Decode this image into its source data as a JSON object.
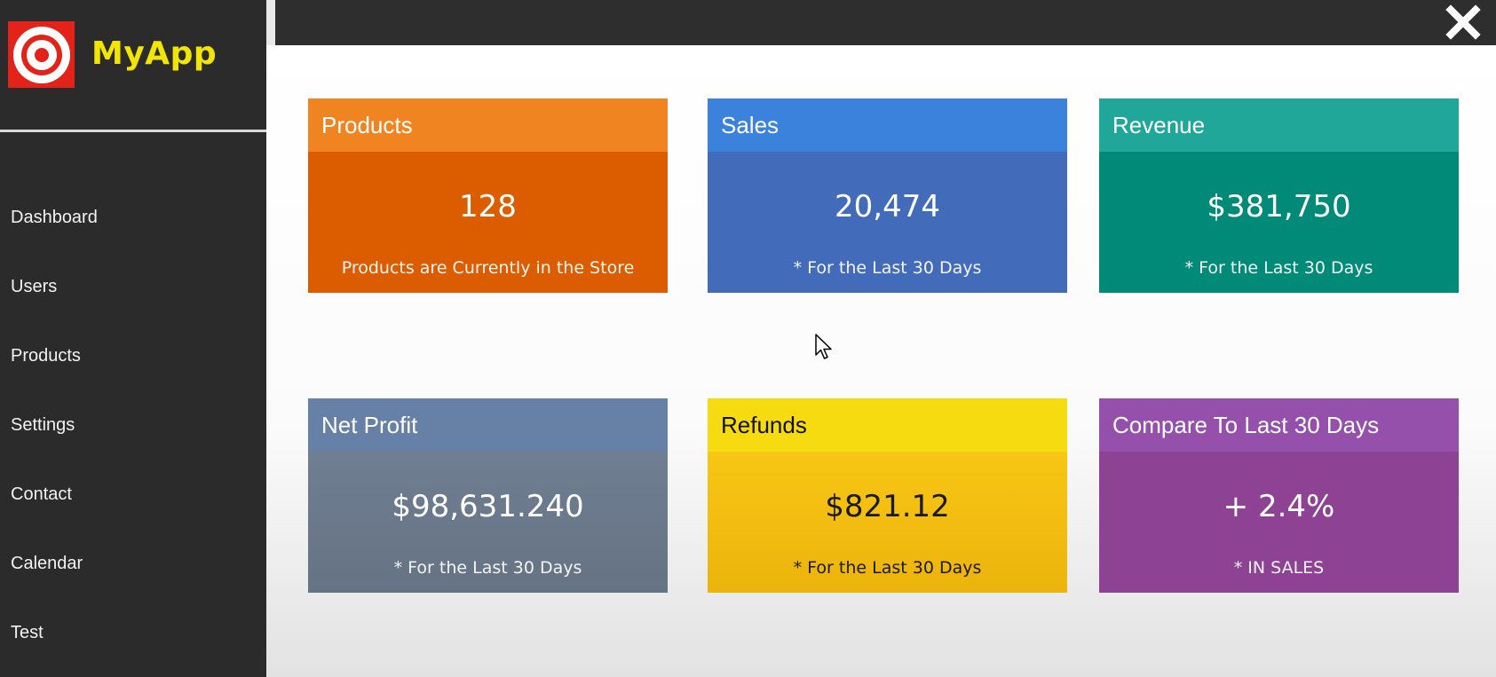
{
  "app": {
    "name": "MyApp",
    "logo_icon": "target-icon"
  },
  "sidebar": {
    "items": [
      {
        "label": "Dashboard"
      },
      {
        "label": "Users"
      },
      {
        "label": "Products"
      },
      {
        "label": "Settings"
      },
      {
        "label": "Contact"
      },
      {
        "label": "Calendar"
      },
      {
        "label": "Test"
      }
    ]
  },
  "topbar": {
    "close_icon": "close-icon"
  },
  "cards": [
    {
      "title": "Products",
      "value": "128",
      "note": "Products are Currently in the Store",
      "color": "#dc5c00"
    },
    {
      "title": "Sales",
      "value": "20,474",
      "note": "* For the Last 30 Days",
      "color": "#426cb9"
    },
    {
      "title": "Revenue",
      "value": "$381,750",
      "note": "* For the Last 30 Days",
      "color": "#018a78"
    },
    {
      "title": "Net Profit",
      "value": "$98,631.240",
      "note": "* For the Last 30 Days",
      "color": "#6b788b"
    },
    {
      "title": "Refunds",
      "value": "$821.12",
      "note": "* For the Last 30 Days",
      "color": "#f8c614"
    },
    {
      "title": "Compare To Last 30 Days",
      "value": "+ 2.4%",
      "note": "* IN SALES",
      "color": "#8e4293"
    }
  ],
  "colors": {
    "sidebar_bg": "#2b2b2b",
    "brand_text": "#f2e600",
    "logo_bg": "#e3231a",
    "topbar_bg": "#2e2e2e"
  }
}
